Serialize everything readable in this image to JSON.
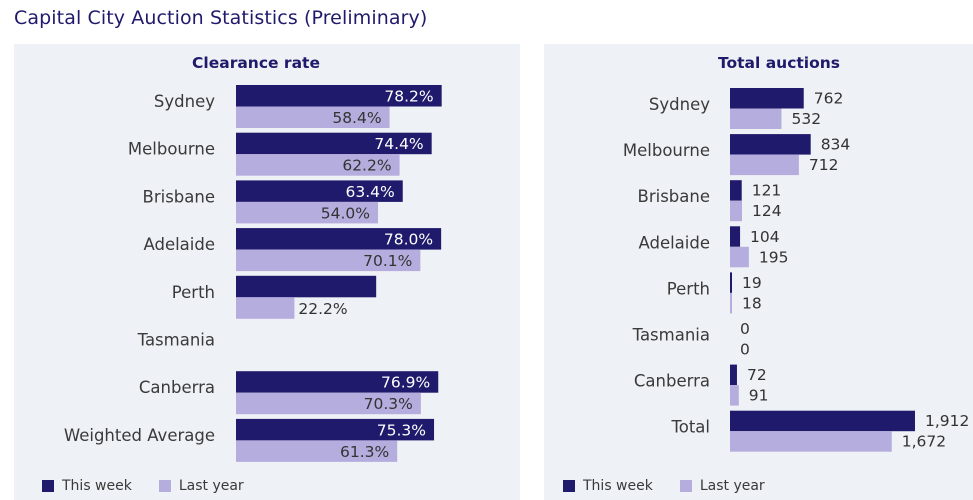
{
  "page": {
    "title": "Capital City Auction Statistics (Preliminary)"
  },
  "colors": {
    "this_week": "#1f1a6b",
    "last_year": "#b6addf",
    "panel_bg": "#eef1f5",
    "title": "#1f1a6b"
  },
  "legend": {
    "this_week": "This week",
    "last_year": "Last year"
  },
  "chart_data": [
    {
      "type": "bar",
      "orientation": "horizontal",
      "title": "Clearance rate",
      "categories": [
        "Sydney",
        "Melbourne",
        "Brisbane",
        "Adelaide",
        "Perth",
        "Tasmania",
        "Canberra",
        "Weighted Average"
      ],
      "series": [
        {
          "name": "This week",
          "values": [
            78.2,
            74.4,
            63.4,
            78.0,
            53.3,
            null,
            76.9,
            75.3
          ],
          "labels": [
            "78.2%",
            "74.4%",
            "63.4%",
            "78.0%",
            "",
            "",
            "76.9%",
            "75.3%"
          ]
        },
        {
          "name": "Last year",
          "values": [
            58.4,
            62.2,
            54.0,
            70.1,
            22.2,
            null,
            70.3,
            61.3
          ],
          "labels": [
            "58.4%",
            "62.2%",
            "54.0%",
            "70.1%",
            "22.2%",
            "",
            "70.3%",
            "61.3%"
          ]
        }
      ],
      "xlim": [
        0,
        100
      ],
      "legend": "bottom-left",
      "grid": false
    },
    {
      "type": "bar",
      "orientation": "horizontal",
      "title": "Total auctions",
      "categories": [
        "Sydney",
        "Melbourne",
        "Brisbane",
        "Adelaide",
        "Perth",
        "Tasmania",
        "Canberra",
        "Total"
      ],
      "series": [
        {
          "name": "This week",
          "values": [
            762,
            834,
            121,
            104,
            19,
            0,
            72,
            1912
          ],
          "labels": [
            "762",
            "834",
            "121",
            "104",
            "19",
            "0",
            "72",
            "1,912"
          ]
        },
        {
          "name": "Last year",
          "values": [
            532,
            712,
            124,
            195,
            18,
            0,
            91,
            1672
          ],
          "labels": [
            "532",
            "712",
            "124",
            "195",
            "18",
            "0",
            "91",
            "1,672"
          ]
        }
      ],
      "xlim": [
        0,
        2000
      ],
      "legend": "bottom-left",
      "grid": false
    }
  ]
}
